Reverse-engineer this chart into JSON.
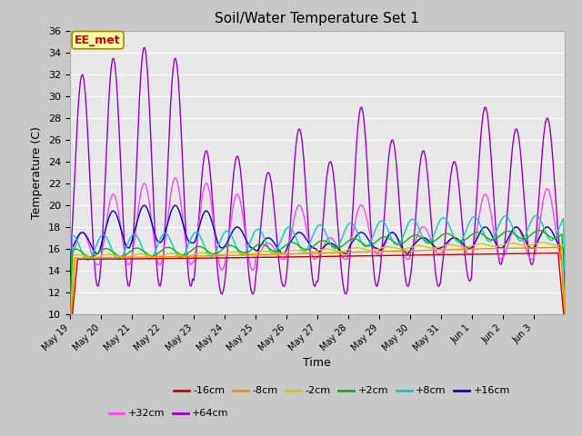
{
  "title": "Soil/Water Temperature Set 1",
  "xlabel": "Time",
  "ylabel": "Temperature (C)",
  "ylim": [
    10,
    36
  ],
  "series_colors": {
    "-16cm": "#cc0000",
    "-8cm": "#ff8c00",
    "-2cm": "#cccc00",
    "+2cm": "#00bb00",
    "+8cm": "#00cccc",
    "+16cm": "#0000cc",
    "+32cm": "#ff44ff",
    "+64cm": "#9900cc"
  },
  "watermark_text": "EE_met",
  "watermark_color": "#cc0000",
  "watermark_bg": "#ffffaa",
  "watermark_border": "#aa8800",
  "tick_labels": [
    "May 19",
    "May 20",
    "May 21",
    "May 22",
    "May 23",
    "May 24",
    "May 25",
    "May 26",
    "May 27",
    "May 28",
    "May 29",
    "May 30",
    "May 31",
    "Jun 1",
    "Jun 2",
    "Jun 3"
  ]
}
